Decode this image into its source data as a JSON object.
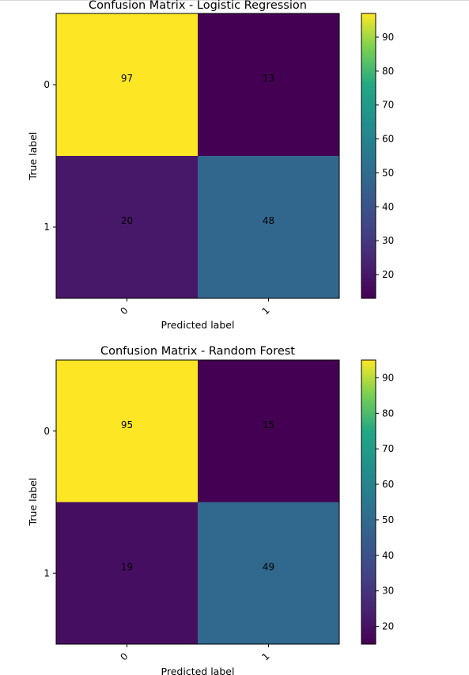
{
  "chart_data": [
    {
      "type": "heatmap",
      "title": "Confusion Matrix - Logistic Regression",
      "xlabel": "Predicted label",
      "ylabel": "True label",
      "x_categories": [
        "0",
        "1"
      ],
      "y_categories": [
        "0",
        "1"
      ],
      "values": [
        [
          97,
          13
        ],
        [
          20,
          48
        ]
      ],
      "colormap": "viridis",
      "colorbar": {
        "min": 13,
        "max": 97,
        "ticks": [
          20,
          30,
          40,
          50,
          60,
          70,
          80,
          90
        ]
      },
      "grid": false
    },
    {
      "type": "heatmap",
      "title": "Confusion Matrix - Random Forest",
      "xlabel": "Predicted label",
      "ylabel": "True label",
      "x_categories": [
        "0",
        "1"
      ],
      "y_categories": [
        "0",
        "1"
      ],
      "values": [
        [
          95,
          15
        ],
        [
          19,
          49
        ]
      ],
      "colormap": "viridis",
      "colorbar": {
        "min": 15,
        "max": 95,
        "ticks": [
          20,
          30,
          40,
          50,
          60,
          70,
          80,
          90
        ]
      },
      "grid": false
    }
  ]
}
